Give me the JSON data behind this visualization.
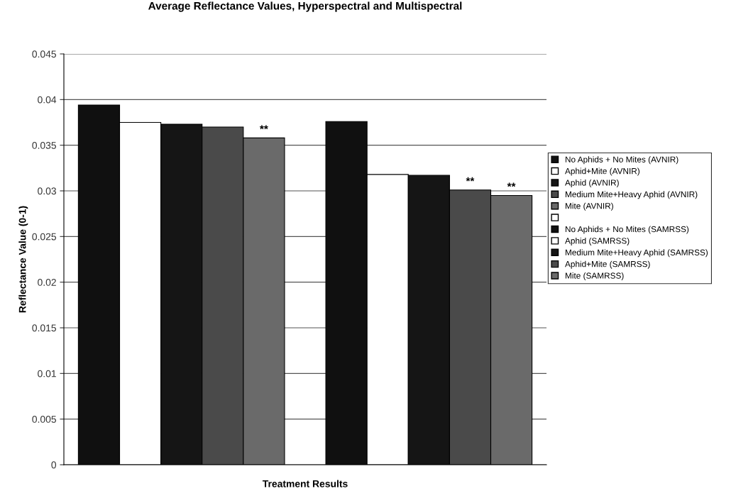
{
  "chart_data": {
    "type": "bar",
    "title": "Average Reflectance Values, Hyperspectral and Multispectral",
    "xlabel": "Treatment Results",
    "ylabel": "Reflectance Value (0-1)",
    "categories": [
      null
    ],
    "series": [
      {
        "name": "No Aphids + No Mites (AVNIR)",
        "color": "#101010",
        "values": [
          0.0394
        ]
      },
      {
        "name": "Aphid+Mite (AVNIR)",
        "color": "#ffffff",
        "values": [
          0.0375
        ]
      },
      {
        "name": "Aphid (AVNIR)",
        "color": "#151515",
        "values": [
          0.0373
        ]
      },
      {
        "name": "Medium Mite+Heavy Aphid (AVNIR)",
        "color": "#4a4a4a",
        "values": [
          0.037
        ]
      },
      {
        "name": "Mite (AVNIR)",
        "color": "#6a6a6a",
        "values": [
          0.0358
        ]
      },
      {
        "color": "#ffffff",
        "values": [
          null
        ]
      },
      {
        "name": "No Aphids + No Mites (SAMRSS)",
        "color": "#101010",
        "values": [
          0.0376
        ]
      },
      {
        "name": "Aphid (SAMRSS)",
        "color": "#ffffff",
        "values": [
          0.0318
        ]
      },
      {
        "name": "Medium Mite+Heavy Aphid (SAMRSS)",
        "color": "#151515",
        "values": [
          0.0317
        ]
      },
      {
        "name": "Aphid+Mite (SAMRSS)",
        "color": "#4a4a4a",
        "values": [
          0.0301
        ]
      },
      {
        "name": "Mite (SAMRSS)",
        "color": "#6a6a6a",
        "values": [
          0.0295
        ]
      }
    ],
    "annotations": [
      {
        "text": "**",
        "y": 0.0358
      },
      {
        "text": "**",
        "y": 0.0301
      },
      {
        "text": "**",
        "y": 0.0295
      }
    ],
    "ylim": [
      0,
      0.045
    ],
    "yticks": [
      0,
      0.005,
      0.01,
      0.015,
      0.02,
      0.025,
      0.03,
      0.035,
      0.04,
      0.045
    ],
    "grid": "y",
    "legend": "right"
  }
}
